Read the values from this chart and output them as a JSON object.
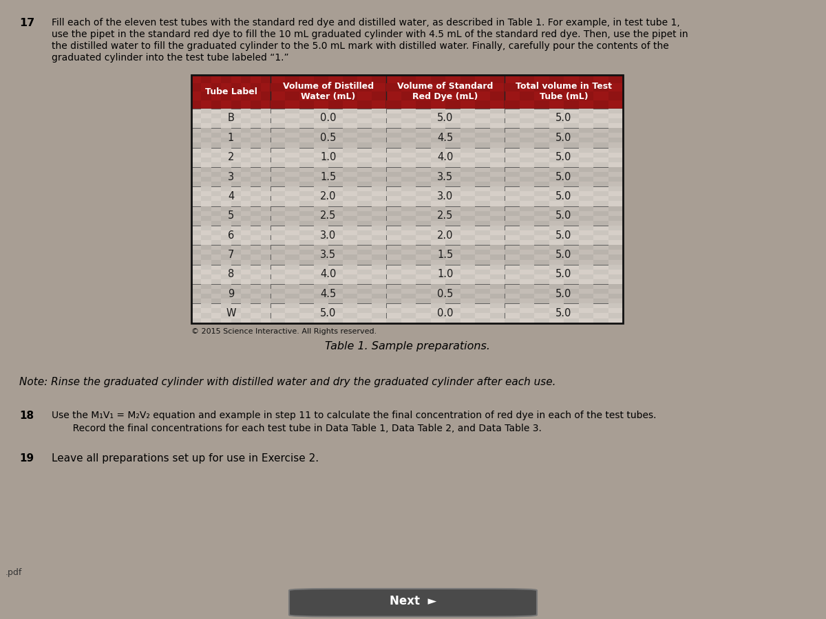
{
  "title_number": "17",
  "title_line1": "Fill each of the eleven test tubes with the standard red dye and distilled water, as described in Table 1. For example, in test tube 1,",
  "title_line2": "use the pipet in the standard red dye to fill the 10 mL graduated cylinder with 4.5 mL of the standard red dye. Then, use the pipet in",
  "title_line3": "the distilled water to fill the graduated cylinder to the 5.0 mL mark with distilled water. Finally, carefully pour the contents of the",
  "title_line4": "graduated cylinder into the test tube labeled “1.”",
  "table_headers": [
    "Tube Label",
    "Volume of Distilled\nWater (mL)",
    "Volume of Standard\nRed Dye (mL)",
    "Total volume in Test\nTube (mL)"
  ],
  "table_rows": [
    [
      "B",
      "0.0",
      "5.0",
      "5.0"
    ],
    [
      "1",
      "0.5",
      "4.5",
      "5.0"
    ],
    [
      "2",
      "1.0",
      "4.0",
      "5.0"
    ],
    [
      "3",
      "1.5",
      "3.5",
      "5.0"
    ],
    [
      "4",
      "2.0",
      "3.0",
      "5.0"
    ],
    [
      "5",
      "2.5",
      "2.5",
      "5.0"
    ],
    [
      "6",
      "3.0",
      "2.0",
      "5.0"
    ],
    [
      "7",
      "3.5",
      "1.5",
      "5.0"
    ],
    [
      "8",
      "4.0",
      "1.0",
      "5.0"
    ],
    [
      "9",
      "4.5",
      "0.5",
      "5.0"
    ],
    [
      "W",
      "5.0",
      "0.0",
      "5.0"
    ]
  ],
  "copyright_text": "© 2015 Science Interactive. All Rights reserved.",
  "table_caption": "Table 1. Sample preparations.",
  "note_text": "Note: Rinse the graduated cylinder with distilled water and dry the graduated cylinder after each use.",
  "step18_number": "18",
  "step18_line1": "Use the M₁V₁ = M₂V₂ equation and example in step 11 to calculate the final concentration of red dye in each of the test tubes.",
  "step18_line2": "       Record the final concentrations for each test tube in Data Table 1, Data Table 2, and Data Table 3.",
  "step19_number": "19",
  "step19_text": "Leave all preparations set up for use in Exercise 2.",
  "next_button_text": "Next  ►",
  "header_bg_color": "#9b1515",
  "header_text_color": "#ffffff",
  "cell_text_color": "#1a1a1a",
  "cell_bg_light": "#d6cfc8",
  "cell_bg_dark": "#c4bdb6",
  "page_bg_color": "#a89e94",
  "content_bg_color": "#b8b0a8",
  "bottom_bar_color": "#1e1e1e",
  "bottom_text_color": "#ffffff",
  "border_color": "#444444",
  "inner_border_color": "#666666"
}
